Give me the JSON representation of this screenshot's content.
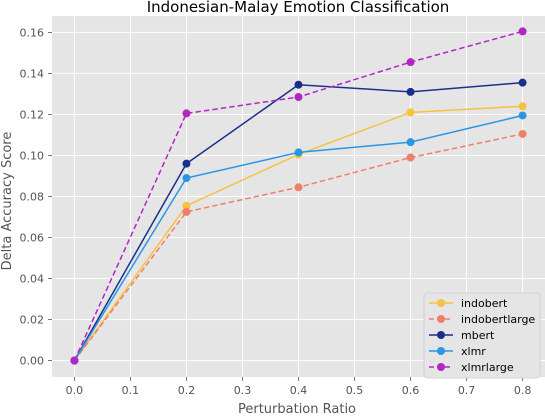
{
  "chart_data": {
    "type": "line",
    "title": "Indonesian-Malay Emotion Classification",
    "xlabel": "Perturbation Ratio",
    "ylabel": "Delta Accuracy Score",
    "x": [
      0.0,
      0.2,
      0.4,
      0.6,
      0.8
    ],
    "xlim": [
      -0.04,
      0.84
    ],
    "ylim": [
      -0.008,
      0.168
    ],
    "xticks": [
      0.0,
      0.1,
      0.2,
      0.3,
      0.4,
      0.5,
      0.6,
      0.7,
      0.8
    ],
    "yticks": [
      0.0,
      0.02,
      0.04,
      0.06,
      0.08,
      0.1,
      0.12,
      0.14,
      0.16
    ],
    "xtick_labels": [
      "0.0",
      "0.1",
      "0.2",
      "0.3",
      "0.4",
      "0.5",
      "0.6",
      "0.7",
      "0.8"
    ],
    "ytick_labels": [
      "0.00",
      "0.02",
      "0.04",
      "0.06",
      "0.08",
      "0.10",
      "0.12",
      "0.14",
      "0.16"
    ],
    "grid": true,
    "legend_position": "bottom-right",
    "series": [
      {
        "name": "indobert",
        "color": "#F5C242",
        "dashed": false,
        "values": [
          0.0,
          0.0755,
          0.1005,
          0.121,
          0.124
        ]
      },
      {
        "name": "indobertlarge",
        "color": "#F07F6A",
        "dashed": true,
        "values": [
          0.0,
          0.0725,
          0.0845,
          0.099,
          0.1105
        ]
      },
      {
        "name": "mbert",
        "color": "#1B2F8A",
        "dashed": false,
        "values": [
          0.0,
          0.096,
          0.1345,
          0.131,
          0.1355
        ]
      },
      {
        "name": "xlmr",
        "color": "#2B96E4",
        "dashed": false,
        "values": [
          0.0,
          0.089,
          0.1015,
          0.1065,
          0.1195
        ]
      },
      {
        "name": "xlmrlarge",
        "color": "#B226C6",
        "dashed": true,
        "values": [
          0.0,
          0.1205,
          0.1285,
          0.1455,
          0.1605
        ]
      }
    ]
  }
}
